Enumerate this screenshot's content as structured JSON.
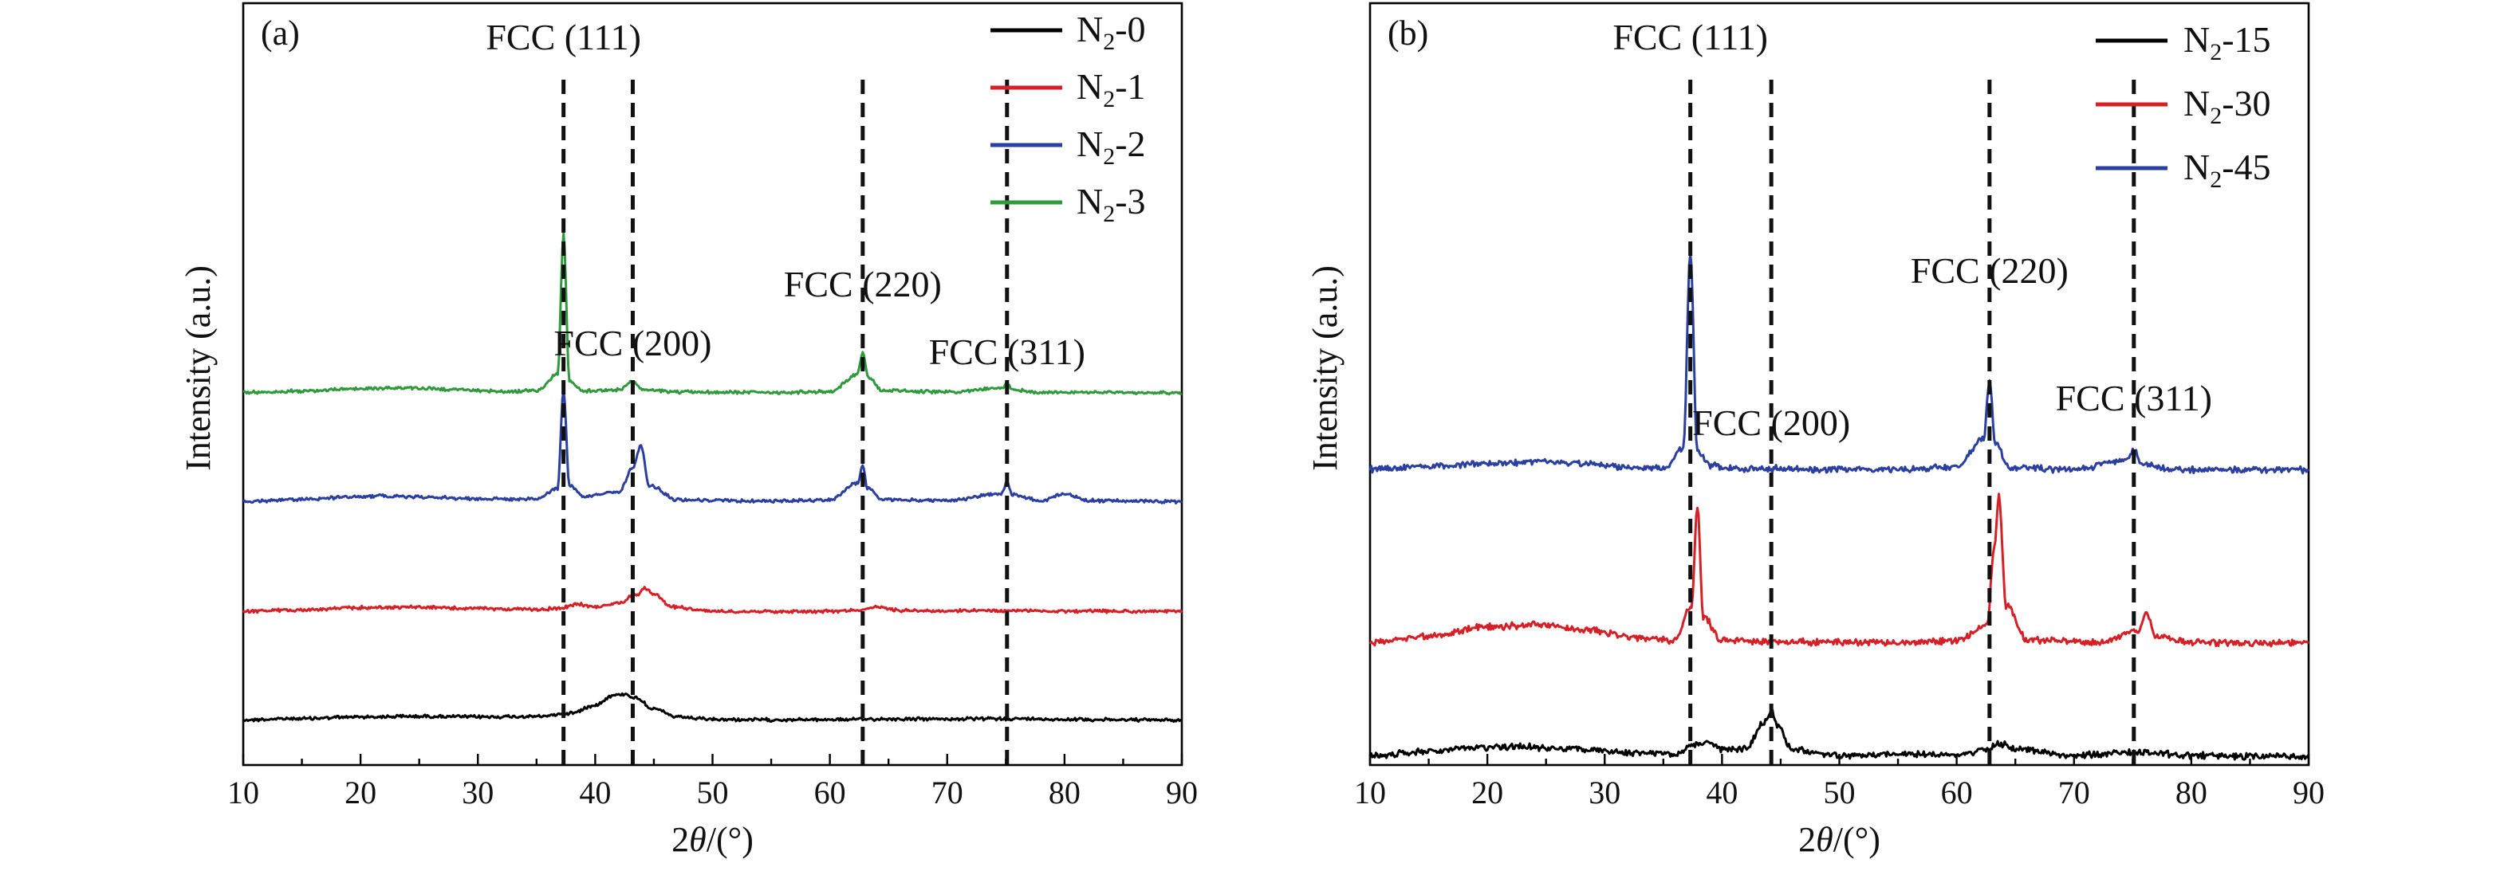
{
  "chart_data": [
    {
      "type": "line",
      "panel_label": "(a)",
      "xlabel_prefix": "2",
      "xlabel_var": "θ",
      "xlabel_suffix": "/(°)",
      "ylabel": "Intensity (a.u.)",
      "xlim": [
        10,
        90
      ],
      "x_ticks": [
        "10",
        "20",
        "30",
        "40",
        "50",
        "60",
        "70",
        "80",
        "90"
      ],
      "y_ticks": [],
      "grid": false,
      "legend_placement": "top-right",
      "reference_lines_x": [
        37.3,
        43.2,
        62.8,
        75.1
      ],
      "peak_labels": [
        {
          "text": "FCC (111)",
          "x": 37.3
        },
        {
          "text": "FCC (200)",
          "x": 43.2
        },
        {
          "text": "FCC (220)",
          "x": 62.8
        },
        {
          "text": "FCC (311)",
          "x": 75.1
        }
      ],
      "series": [
        {
          "name": "N₂-0",
          "name_base": "N",
          "name_sub": "2",
          "name_tail": "-0",
          "color": "#000000",
          "x": [
            10,
            15,
            20,
            25,
            30,
            35,
            38,
            40,
            41.5,
            42.5,
            43.5,
            45,
            47,
            50,
            55,
            60,
            65,
            70,
            75,
            80,
            85,
            90
          ],
          "y": [
            0.05,
            0.1,
            0.16,
            0.18,
            0.16,
            0.17,
            0.3,
            0.6,
            0.95,
            1.0,
            0.85,
            0.45,
            0.15,
            0.06,
            0.05,
            0.06,
            0.08,
            0.08,
            0.09,
            0.07,
            0.05,
            0.04
          ]
        },
        {
          "name": "N₂-1",
          "name_base": "N",
          "name_sub": "2",
          "name_tail": "-1",
          "color": "#d62027",
          "x": [
            10,
            15,
            20,
            24,
            30,
            35,
            37,
            38.5,
            40,
            42,
            43.5,
            44.3,
            45,
            46.5,
            50,
            55,
            60,
            62.5,
            64.2,
            66,
            70,
            76,
            80,
            85,
            90
          ],
          "y": [
            0.05,
            0.12,
            0.25,
            0.28,
            0.2,
            0.15,
            0.2,
            0.45,
            0.3,
            0.5,
            1.0,
            1.35,
            1.05,
            0.3,
            0.05,
            0.03,
            0.05,
            0.12,
            0.28,
            0.1,
            0.06,
            0.08,
            0.05,
            0.04,
            0.03
          ]
        },
        {
          "name": "N₂-2",
          "name_base": "N",
          "name_sub": "2",
          "name_tail": "-2",
          "color": "#2b3fa0",
          "x": [
            10,
            15,
            20,
            22,
            25,
            30,
            35,
            36.8,
            37.3,
            37.8,
            39,
            42,
            43.2,
            43.9,
            44.6,
            47,
            55,
            60,
            62.4,
            62.8,
            63.2,
            64.5,
            70,
            74.6,
            75.1,
            75.6,
            78,
            80,
            82,
            90
          ],
          "y": [
            0.02,
            0.1,
            0.2,
            0.22,
            0.18,
            0.12,
            0.1,
            0.5,
            4.0,
            0.6,
            0.2,
            0.35,
            1.2,
            2.0,
            0.6,
            0.08,
            0.03,
            0.08,
            0.7,
            1.3,
            0.5,
            0.08,
            0.05,
            0.3,
            0.7,
            0.25,
            0.05,
            0.3,
            0.05,
            0.02
          ]
        },
        {
          "name": "N₂-3",
          "name_base": "N",
          "name_sub": "2",
          "name_tail": "-3",
          "color": "#2f9a3c",
          "x": [
            10,
            15,
            20,
            24,
            28,
            32,
            35,
            36.8,
            37.3,
            37.8,
            39,
            42,
            43.2,
            44,
            47,
            55,
            60,
            62.3,
            62.8,
            63.3,
            64.5,
            70,
            74.6,
            75.1,
            75.6,
            78,
            85,
            90
          ],
          "y": [
            0.02,
            0.12,
            0.28,
            0.32,
            0.22,
            0.1,
            0.12,
            1.2,
            10.5,
            0.8,
            0.12,
            0.2,
            0.75,
            0.2,
            0.05,
            0.03,
            0.08,
            1.2,
            2.6,
            1.0,
            0.15,
            0.05,
            0.3,
            0.55,
            0.2,
            0.04,
            0.02,
            0.01
          ]
        }
      ]
    },
    {
      "type": "line",
      "panel_label": "(b)",
      "xlabel_prefix": "2",
      "xlabel_var": "θ",
      "xlabel_suffix": "/(°)",
      "ylabel": "Intensity (a.u.)",
      "xlim": [
        10,
        90
      ],
      "x_ticks": [
        "10",
        "20",
        "30",
        "40",
        "50",
        "60",
        "70",
        "80",
        "90"
      ],
      "y_ticks": [],
      "grid": false,
      "legend_placement": "top-right",
      "reference_lines_x": [
        37.3,
        44.2,
        62.8,
        75.1
      ],
      "peak_labels": [
        {
          "text": "FCC (111)",
          "x": 37.3
        },
        {
          "text": "FCC (200)",
          "x": 44.2
        },
        {
          "text": "FCC (220)",
          "x": 62.8
        },
        {
          "text": "FCC (311)",
          "x": 75.1
        }
      ],
      "series": [
        {
          "name": "N₂-15",
          "name_base": "N",
          "name_sub": "2",
          "name_tail": "-15",
          "color": "#000000",
          "x": [
            10,
            15,
            20,
            23,
            27,
            32,
            36,
            37.5,
            38.5,
            40,
            42,
            43.6,
            44.2,
            44.8,
            46,
            50,
            55,
            60,
            62.5,
            63.6,
            65,
            70,
            75.5,
            80,
            85,
            90
          ],
          "y": [
            0.05,
            0.2,
            0.35,
            0.38,
            0.3,
            0.15,
            0.12,
            0.45,
            0.55,
            0.3,
            0.3,
            1.3,
            1.7,
            1.1,
            0.25,
            0.05,
            0.12,
            0.08,
            0.3,
            0.5,
            0.3,
            0.06,
            0.2,
            0.05,
            0.03,
            0.02
          ]
        },
        {
          "name": "N₂-30",
          "name_base": "N",
          "name_sub": "2",
          "name_tail": "-30",
          "color": "#d62027",
          "x": [
            10,
            15,
            20,
            24,
            28,
            33,
            36,
            37.4,
            37.9,
            38.4,
            40,
            45,
            55,
            60,
            62.6,
            63.2,
            63.6,
            64.2,
            66,
            72,
            75.5,
            76.2,
            77,
            80,
            85,
            90
          ],
          "y": [
            0.05,
            0.2,
            0.45,
            0.5,
            0.38,
            0.15,
            0.08,
            1.0,
            3.6,
            0.7,
            0.1,
            0.05,
            0.04,
            0.08,
            0.5,
            2.5,
            3.9,
            1.0,
            0.1,
            0.04,
            0.35,
            0.8,
            0.2,
            0.04,
            0.03,
            0.02
          ]
        },
        {
          "name": "N₂-45",
          "name_base": "N",
          "name_sub": "2",
          "name_tail": "-45",
          "color": "#2b3fa0",
          "x": [
            10,
            15,
            20,
            25,
            28,
            32,
            35,
            36.7,
            37.3,
            37.9,
            39,
            41,
            44.2,
            46,
            55,
            60,
            62.3,
            62.8,
            63.3,
            64.5,
            70,
            74.5,
            75.1,
            75.7,
            78,
            85,
            90
          ],
          "y": [
            0.05,
            0.22,
            0.4,
            0.48,
            0.36,
            0.15,
            0.1,
            1.2,
            12.5,
            1.0,
            0.25,
            0.06,
            0.1,
            0.05,
            0.06,
            0.15,
            1.8,
            5.0,
            1.5,
            0.15,
            0.05,
            0.6,
            1.2,
            0.4,
            0.04,
            0.02,
            0.01
          ]
        }
      ]
    }
  ]
}
